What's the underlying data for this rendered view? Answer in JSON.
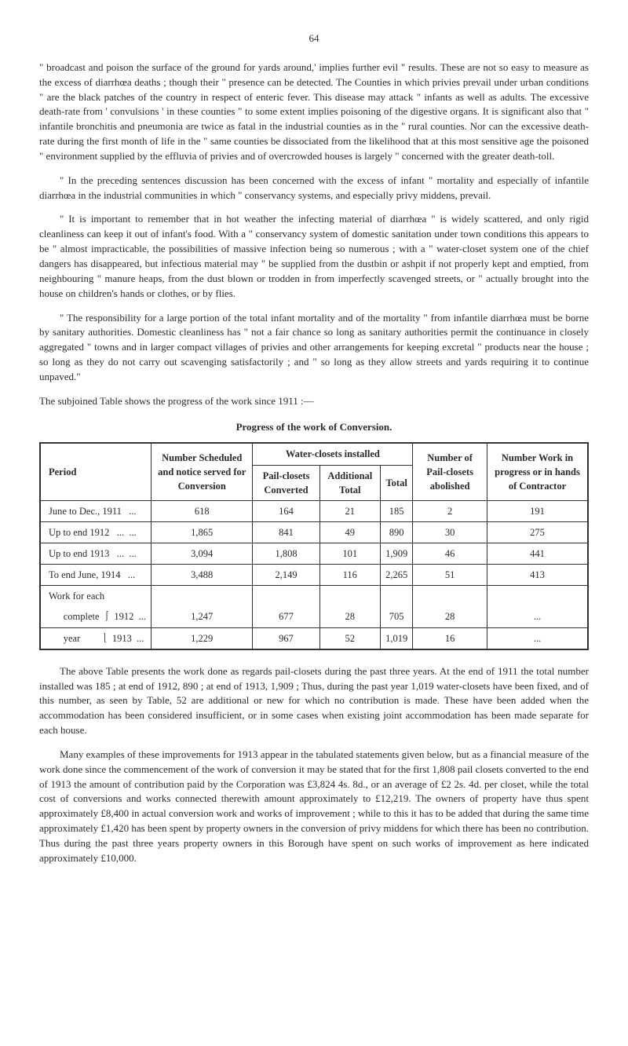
{
  "pageNumber": "64",
  "para1": "\" broadcast and poison the surface of the ground for yards around,' implies further evil \" results. These are not so easy to measure as the excess of diarrhœa deaths ; though their \" presence can be detected. The Counties in which privies prevail under urban conditions \" are the black patches of the country in respect of enteric fever. This disease may attack \" infants as well as adults. The excessive death-rate from ' convulsions ' in these counties \" to some extent implies poisoning of the digestive organs. It is significant also that \" infantile bronchitis and pneumonia are twice as fatal in the industrial counties as in the \" rural counties. Nor can the excessive death-rate during the first month of life in the \" same counties be dissociated from the likelihood that at this most sensitive age the poisoned \" environment supplied by the effluvia of privies and of overcrowded houses is largely \" concerned with the greater death-toll.",
  "para2": "\" In the preceding sentences discussion has been concerned with the excess of infant \" mortality and especially of infantile diarrhœa in the industrial communities in which \" conservancy systems, and especially privy middens, prevail.",
  "para3": "\" It is important to remember that in hot weather the infecting material of diarrhœa \" is widely scattered, and only rigid cleanliness can keep it out of infant's food. With a \" conservancy system of domestic sanitation under town conditions this appears to be \" almost impracticable, the possibilities of massive infection being so numerous ; with a \" water-closet system one of the chief dangers has disappeared, but infectious material may \" be supplied from the dustbin or ashpit if not properly kept and emptied, from neighbouring \" manure heaps, from the dust blown or trodden in from imperfectly scavenged streets, or \" actually brought into the house on children's hands or clothes, or by flies.",
  "para4": "\" The responsibility for a large portion of the total infant mortality and of the mortality \" from infantile diarrhœa must be borne by sanitary authorities. Domestic cleanliness has \" not a fair chance so long as sanitary authorities permit the continuance in closely aggregated \" towns and in larger compact villages of privies and other arrangements for keeping excretal \" products near the house ; so long as they do not carry out scavenging satisfactorily ; and \" so long as they allow streets and yards requiring it to continue unpaved.\"",
  "para5": "The subjoined Table shows the progress of the work since 1911 :—",
  "tableTitle": "Progress of the work of Conversion.",
  "table": {
    "headers": {
      "period": "Period",
      "scheduled": "Number Scheduled and notice served for Conversion",
      "wcInstalled": "Water-closets installed",
      "pailConverted": "Pail-closets Converted",
      "additionalTotal": "Additional Total",
      "total": "Total",
      "pailAbolished": "Number of Pail-closets abolished",
      "workInProgress": "Number Work in progress or in hands of Contractor"
    },
    "rows": [
      {
        "period": "June to Dec., 1911   ...",
        "scheduled": "618",
        "pailConverted": "164",
        "additionalTotal": "21",
        "total": "185",
        "pailAbolished": "2",
        "workInProgress": "191"
      },
      {
        "period": "Up to end 1912   ...  ...",
        "scheduled": "1,865",
        "pailConverted": "841",
        "additionalTotal": "49",
        "total": "890",
        "pailAbolished": "30",
        "workInProgress": "275"
      },
      {
        "period": "Up to end 1913   ...  ...",
        "scheduled": "3,094",
        "pailConverted": "1,808",
        "additionalTotal": "101",
        "total": "1,909",
        "pailAbolished": "46",
        "workInProgress": "441"
      },
      {
        "period": "To end June, 1914   ...",
        "scheduled": "3,488",
        "pailConverted": "2,149",
        "additionalTotal": "116",
        "total": "2,265",
        "pailAbolished": "51",
        "workInProgress": "413"
      }
    ],
    "sectionLabel": "Work for each",
    "sectionRows": [
      {
        "period": "      complete ⎰ 1912  ...",
        "scheduled": "1,247",
        "pailConverted": "677",
        "additionalTotal": "28",
        "total": "705",
        "pailAbolished": "28",
        "workInProgress": "..."
      },
      {
        "period": "      year        ⎱ 1913  ...",
        "scheduled": "1,229",
        "pailConverted": "967",
        "additionalTotal": "52",
        "total": "1,019",
        "pailAbolished": "16",
        "workInProgress": "..."
      }
    ]
  },
  "para6": "The above Table presents the work done as regards pail-closets during the past three years. At the end of 1911 the total number installed was 185 ; at end of 1912, 890 ; at end of 1913, 1,909 ; Thus, during the past year 1,019 water-closets have been fixed, and of this number, as seen by Table, 52 are additional or new for which no contribution is made. These have been added when the accommodation has been considered insufficient, or in some cases when existing joint accommodation has been made separate for each house.",
  "para7": "Many examples of these improvements for 1913 appear in the tabulated statements given below, but as a financial measure of the work done since the commencement of the work of conversion it may be stated that for the first 1,808 pail closets converted to the end of 1913 the amount of contribution paid by the Corporation was £3,824 4s. 8d., or an average of £2 2s. 4d. per closet, while the total cost of conversions and works connected therewith amount approximately to £12,219. The owners of property have thus spent approximately £8,400 in actual conversion work and works of improvement ; while to this it has to be added that during the same time approximately £1,420 has been spent by property owners in the conversion of privy middens for which there has been no contribution. Thus during the past three years property owners in this Borough have spent on such works of improvement as here indicated approximately £10,000."
}
